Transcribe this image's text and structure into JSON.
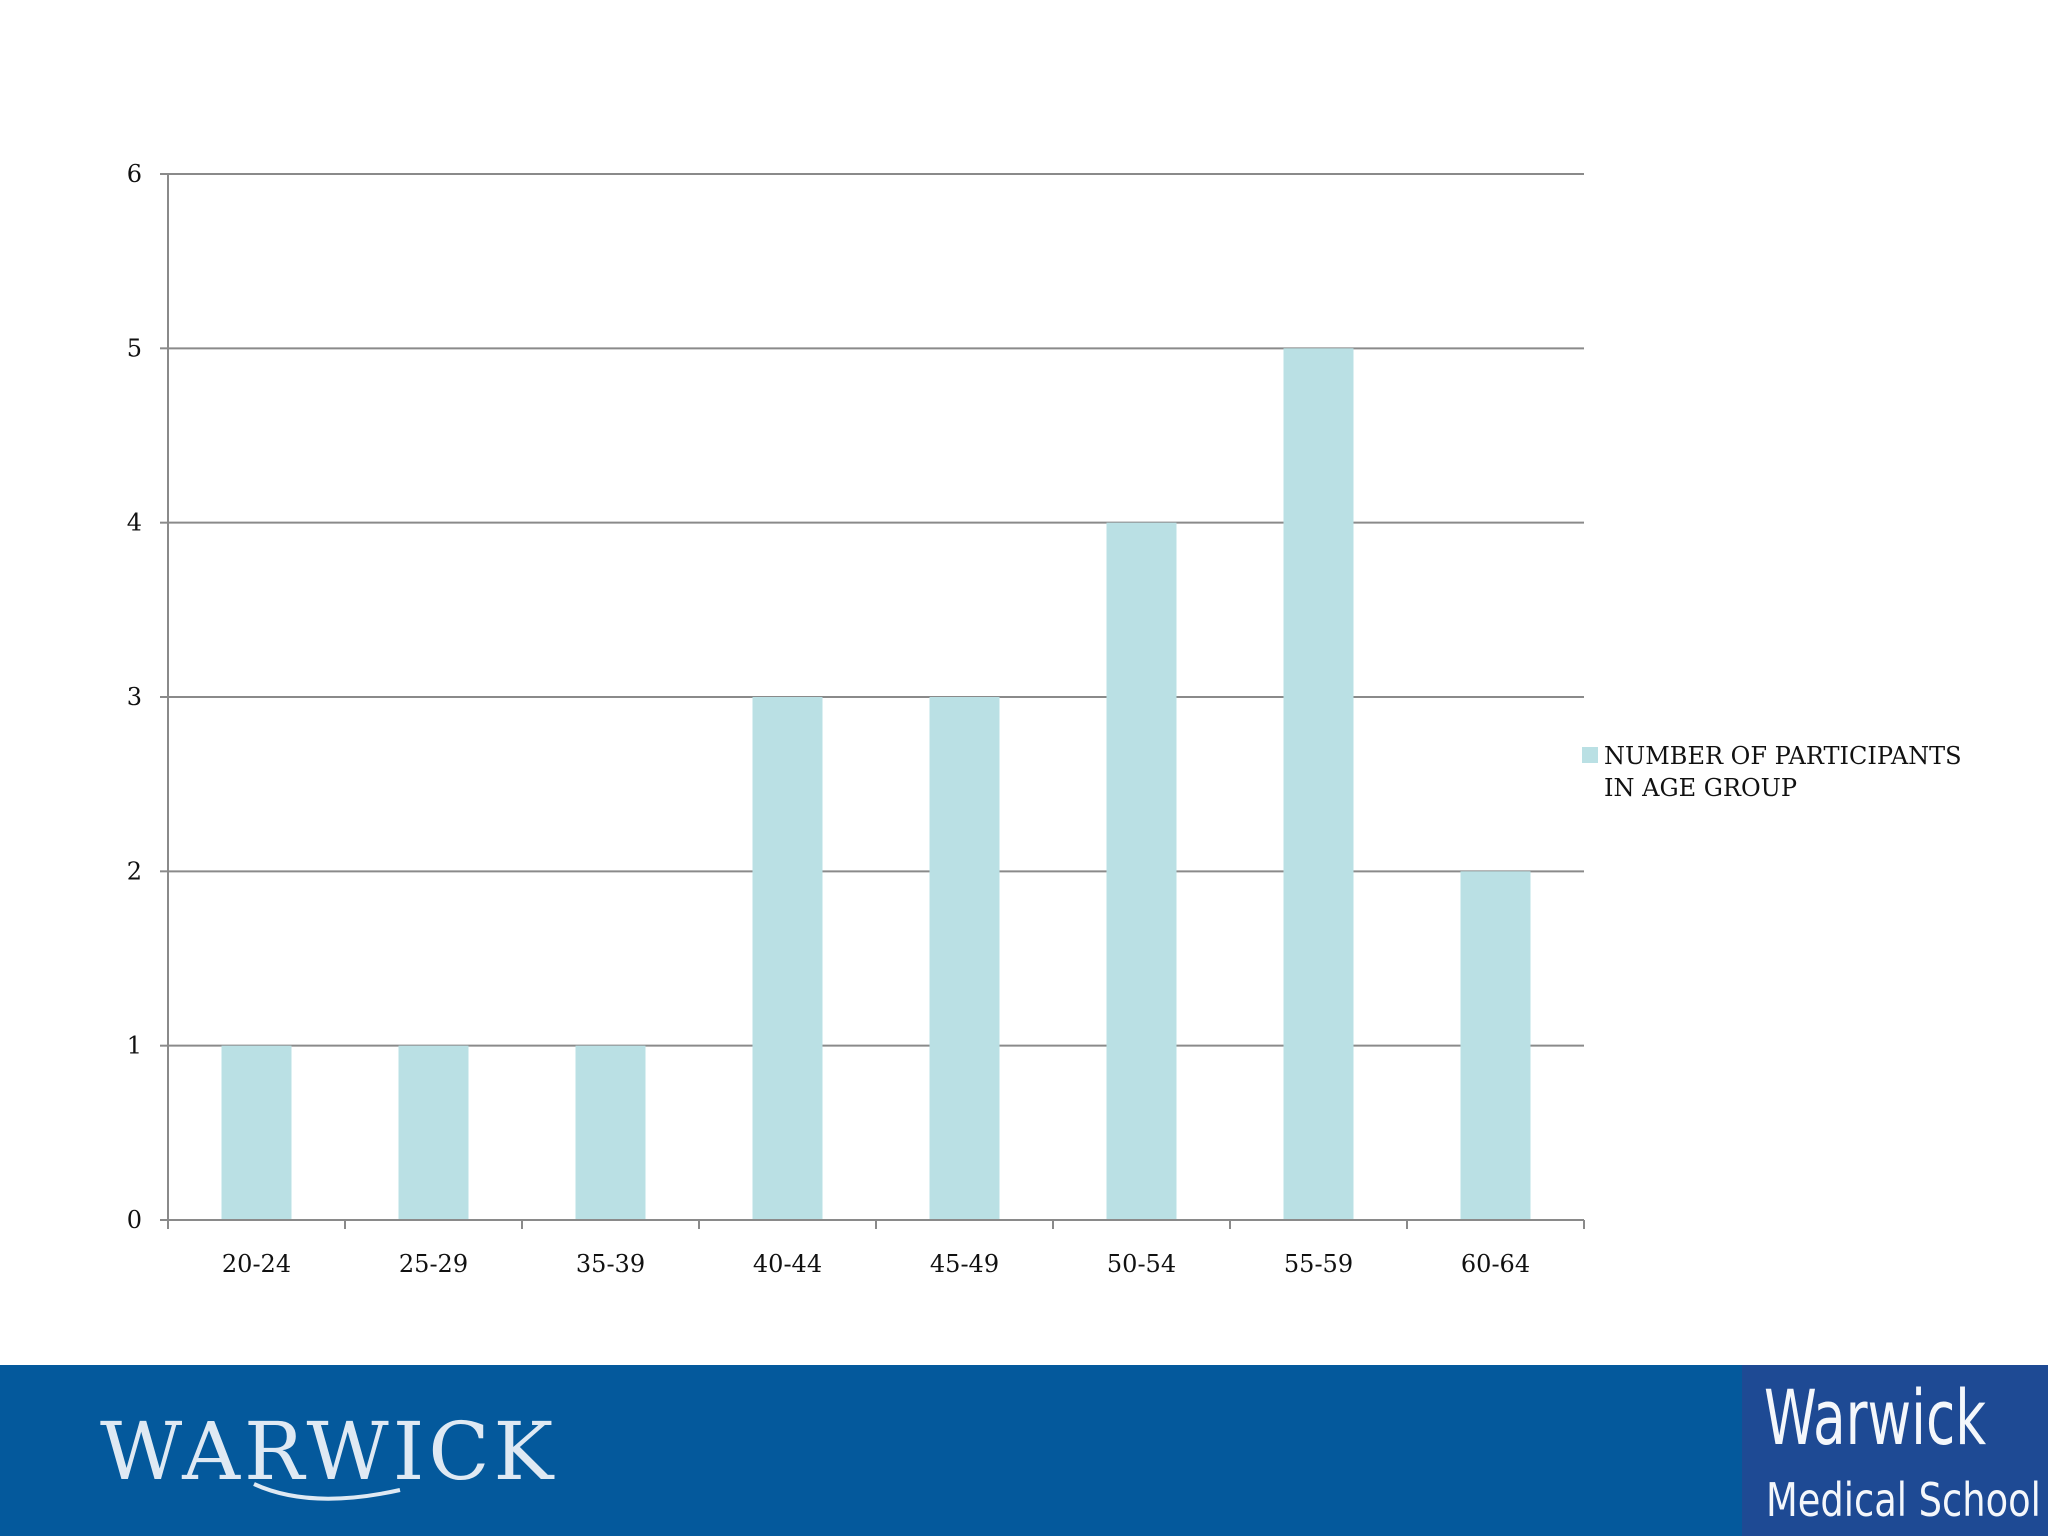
{
  "chart_data": {
    "type": "bar",
    "categories": [
      "20-24",
      "25-29",
      "35-39",
      "40-44",
      "45-49",
      "50-54",
      "55-59",
      "60-64"
    ],
    "series": [
      {
        "name": "NUMBER OF PARTICIPANTS IN AGE GROUP",
        "values": [
          1,
          1,
          1,
          3,
          3,
          4,
          5,
          2
        ]
      }
    ],
    "legend_lines": [
      "NUMBER OF PARTICIPANTS",
      "IN AGE GROUP"
    ],
    "yticks": [
      "0",
      "1",
      "2",
      "3",
      "4",
      "5",
      "6"
    ],
    "ylim": [
      0,
      6
    ],
    "grid": true,
    "legend": "right",
    "bar_color": "#bae0e4"
  },
  "footer": {
    "logo_text": "WARWICK",
    "badge_title": "Warwick",
    "badge_subtitle": "Medical School",
    "background": "#04599c",
    "badge_background": "#1e4a94"
  }
}
